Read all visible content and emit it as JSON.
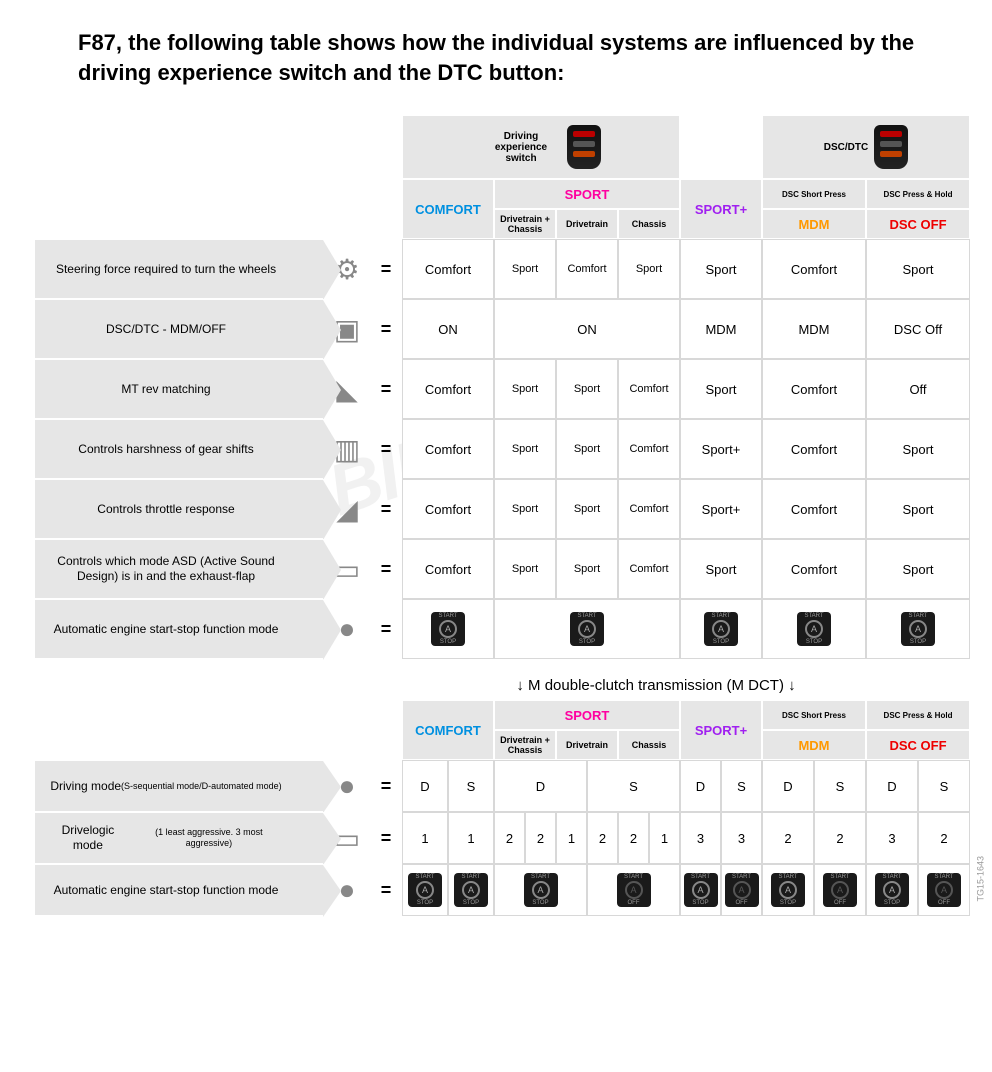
{
  "title": "F87, the following table shows how the individual systems are influenced by the driving experience switch and the DTC button:",
  "watermark": "BIMMERPOST",
  "corner_code": "TG15-1643",
  "header": {
    "drivingSwitch": "Driving experience switch",
    "dscDtc": "DSC/DTC",
    "comfort": "COMFORT",
    "sport": "SPORT",
    "sportPlus": "SPORT+",
    "dscShort": "DSC Short Press",
    "dscHold": "DSC Press & Hold",
    "mdm": "MDM",
    "dscOff": "DSC OFF",
    "drivetrainChassis": "Drivetrain + Chassis",
    "drivetrain": "Drivetrain",
    "chassis": "Chassis"
  },
  "rowsTop": [
    {
      "label": "Steering force required to turn the wheels",
      "icon": "⚙",
      "cells": [
        "Comfort",
        "Sport",
        "Comfort",
        "Sport",
        "Sport",
        "Comfort",
        "Sport"
      ]
    },
    {
      "label": "DSC/DTC - MDM/OFF",
      "icon": "▣",
      "cells": [
        "ON",
        "ON",
        "",
        "",
        "MDM",
        "MDM",
        "DSC Off"
      ],
      "merge": "on2"
    },
    {
      "label": "MT rev matching",
      "icon": "◣",
      "cells": [
        "Comfort",
        "Sport",
        "Sport",
        "Comfort",
        "Sport",
        "Comfort",
        "Off"
      ]
    },
    {
      "label": "Controls harshness of gear shifts",
      "icon": "▥",
      "cells": [
        "Comfort",
        "Sport",
        "Sport",
        "Comfort",
        "Sport+",
        "Comfort",
        "Sport"
      ]
    },
    {
      "label": "Controls throttle response",
      "icon": "◢",
      "cells": [
        "Comfort",
        "Sport",
        "Sport",
        "Comfort",
        "Sport+",
        "Comfort",
        "Sport"
      ]
    },
    {
      "label": "Controls which mode ASD (Active Sound Design) is in and the exhaust-flap",
      "icon": "▭",
      "cells": [
        "Comfort",
        "Sport",
        "Sport",
        "Comfort",
        "Sport",
        "Comfort",
        "Sport"
      ]
    },
    {
      "label": "Automatic engine start-stop function mode",
      "icon": "●",
      "startstop": [
        "on",
        null,
        "on",
        null,
        "on",
        "on",
        "on"
      ],
      "merge": "ss"
    }
  ],
  "sectionLabel": "↓ M double-clutch transmission (M DCT) ↓",
  "rowsBottom": [
    {
      "label": "Driving mode",
      "sub": "(S-sequential mode/D-automated mode)",
      "icon": "●",
      "cells": [
        "D",
        "S",
        "D",
        "",
        "",
        "S",
        "",
        "",
        "D",
        "S",
        "D",
        "S",
        "D",
        "S"
      ]
    },
    {
      "label": "Drivelogic mode",
      "sub": "(1 least aggressive. 3 most aggressive)",
      "icon": "▭",
      "cells": [
        "1",
        "1",
        "2",
        "2",
        "1",
        "2",
        "2",
        "1",
        "3",
        "3",
        "2",
        "2",
        "3",
        "2"
      ]
    },
    {
      "label": "Automatic engine start-stop function mode",
      "icon": "●",
      "startstop": [
        "on",
        "on",
        "on",
        "",
        "",
        "off",
        "",
        "",
        "on",
        "off",
        "on",
        "off",
        "on",
        "off"
      ]
    }
  ]
}
